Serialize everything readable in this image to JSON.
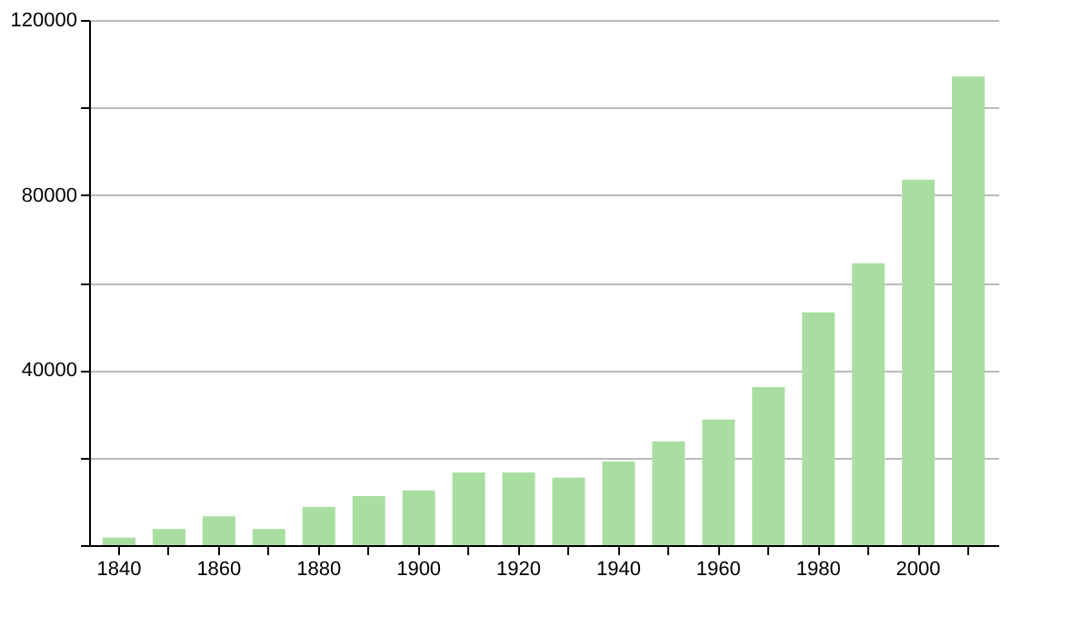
{
  "chart_data": {
    "type": "bar",
    "categories": [
      "1840",
      null,
      "1860",
      null,
      "1880",
      null,
      "1900",
      null,
      "1920",
      null,
      "1940",
      null,
      "1960",
      null,
      "1980",
      null,
      "2000",
      null
    ],
    "values": [
      1700,
      3700,
      6600,
      3700,
      8700,
      11200,
      12500,
      16600,
      16600,
      15400,
      19100,
      23700,
      28700,
      36100,
      53200,
      64400,
      83500,
      107100
    ],
    "color": "#a8dfa0",
    "ylim": [
      0,
      120000
    ],
    "yticks": [
      {
        "value": 0,
        "label": null
      },
      {
        "value": 20000,
        "label": null
      },
      40000,
      {
        "value": 60000,
        "label": null
      },
      80000,
      {
        "value": 100000,
        "label": null
      },
      120000
    ],
    "grid": "y"
  }
}
